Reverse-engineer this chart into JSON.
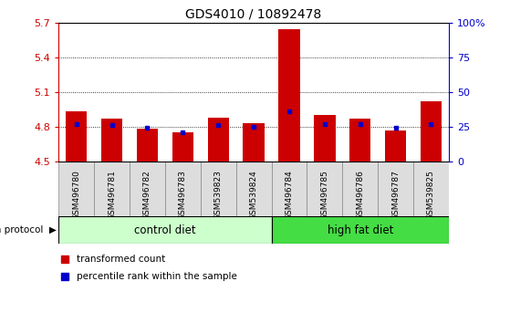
{
  "title": "GDS4010 / 10892478",
  "samples": [
    "GSM496780",
    "GSM496781",
    "GSM496782",
    "GSM496783",
    "GSM539823",
    "GSM539824",
    "GSM496784",
    "GSM496785",
    "GSM496786",
    "GSM496787",
    "GSM539825"
  ],
  "transformed_counts": [
    4.93,
    4.87,
    4.78,
    4.75,
    4.88,
    4.83,
    5.64,
    4.9,
    4.87,
    4.77,
    5.02
  ],
  "percentile_ranks": [
    27,
    26,
    24,
    21,
    26,
    25,
    36,
    27,
    27,
    24,
    27
  ],
  "ymin": 4.5,
  "ymax": 5.7,
  "yticks": [
    4.5,
    4.8,
    5.1,
    5.4,
    5.7
  ],
  "ytick_labels": [
    "4.5",
    "4.8",
    "5.1",
    "5.4",
    "5.7"
  ],
  "right_yticks": [
    0,
    25,
    50,
    75,
    100
  ],
  "right_ytick_labels": [
    "0",
    "25",
    "50",
    "75",
    "100%"
  ],
  "bar_color": "#cc0000",
  "dot_color": "#0000cc",
  "n_control": 6,
  "n_highfat": 5,
  "control_diet_label": "control diet",
  "high_fat_diet_label": "high fat diet",
  "control_diet_color": "#ccffcc",
  "high_fat_diet_color": "#44dd44",
  "growth_protocol_label": "growth protocol",
  "legend_bar_label": "transformed count",
  "legend_dot_label": "percentile rank within the sample",
  "left_axis_color": "#cc0000",
  "right_axis_color": "#0000cc",
  "xlabel_bg_color": "#dddddd",
  "xlabel_border_color": "#888888"
}
